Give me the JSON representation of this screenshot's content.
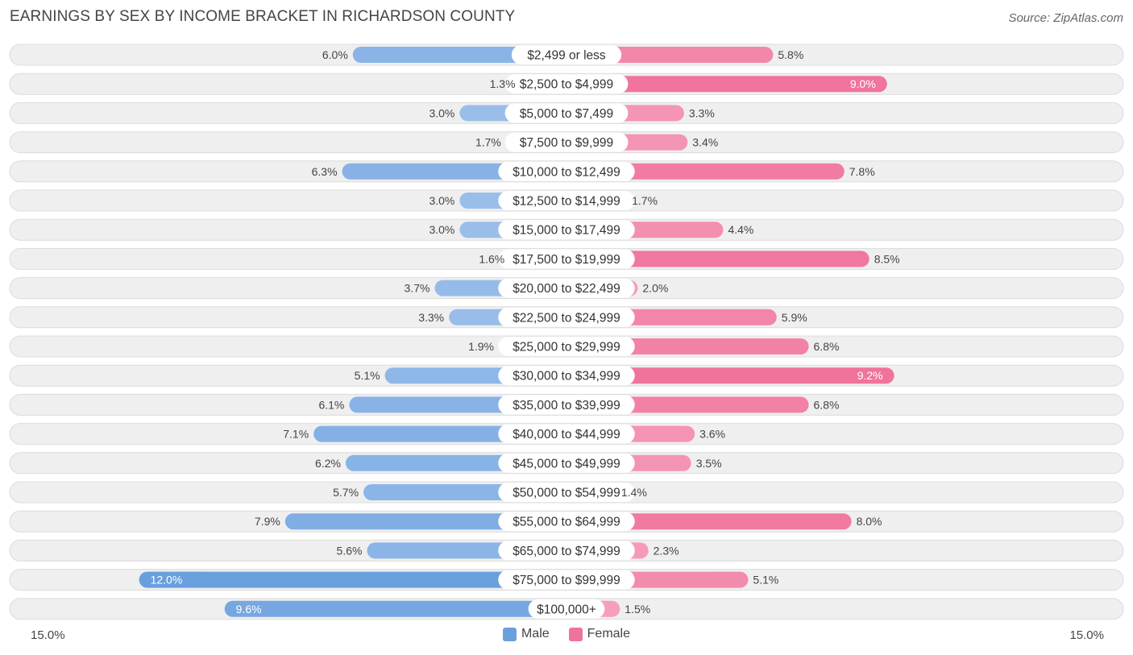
{
  "title": "EARNINGS BY SEX BY INCOME BRACKET IN RICHARDSON COUNTY",
  "source": "Source: ZipAtlas.com",
  "axis": {
    "left_label": "15.0%",
    "right_label": "15.0%"
  },
  "legend": [
    {
      "label": "Male",
      "color": "#6a9fde"
    },
    {
      "label": "Female",
      "color": "#f0739c"
    }
  ],
  "colors": {
    "male_dark": "#6a9fde",
    "male_light": "#a9c8ee",
    "female_dark": "#f0739c",
    "female_light": "#f6a8c1",
    "row_bg": "#efefef",
    "row_border": "#dcdcdc"
  },
  "chart_data": {
    "type": "bar",
    "orientation": "horizontal-diverging",
    "title": "EARNINGS BY SEX BY INCOME BRACKET IN RICHARDSON COUNTY",
    "xlim": [
      -15,
      15
    ],
    "categories": [
      "$2,499 or less",
      "$2,500 to $4,999",
      "$5,000 to $7,499",
      "$7,500 to $9,999",
      "$10,000 to $12,499",
      "$12,500 to $14,999",
      "$15,000 to $17,499",
      "$17,500 to $19,999",
      "$20,000 to $22,499",
      "$22,500 to $24,999",
      "$25,000 to $29,999",
      "$30,000 to $34,999",
      "$35,000 to $39,999",
      "$40,000 to $44,999",
      "$45,000 to $49,999",
      "$50,000 to $54,999",
      "$55,000 to $64,999",
      "$65,000 to $74,999",
      "$75,000 to $99,999",
      "$100,000+"
    ],
    "series": [
      {
        "name": "Male",
        "values": [
          6.0,
          1.3,
          3.0,
          1.7,
          6.3,
          3.0,
          3.0,
          1.6,
          3.7,
          3.3,
          1.9,
          5.1,
          6.1,
          7.1,
          6.2,
          5.7,
          7.9,
          5.6,
          12.0,
          9.6
        ],
        "labels": [
          "6.0%",
          "1.3%",
          "3.0%",
          "1.7%",
          "6.3%",
          "3.0%",
          "3.0%",
          "1.6%",
          "3.7%",
          "3.3%",
          "1.9%",
          "5.1%",
          "6.1%",
          "7.1%",
          "6.2%",
          "5.7%",
          "7.9%",
          "5.6%",
          "12.0%",
          "9.6%"
        ]
      },
      {
        "name": "Female",
        "values": [
          5.8,
          9.0,
          3.3,
          3.4,
          7.8,
          1.7,
          4.4,
          8.5,
          2.0,
          5.9,
          6.8,
          9.2,
          6.8,
          3.6,
          3.5,
          1.4,
          8.0,
          2.3,
          5.1,
          1.5
        ],
        "labels": [
          "5.8%",
          "9.0%",
          "3.3%",
          "3.4%",
          "7.8%",
          "1.7%",
          "4.4%",
          "8.5%",
          "2.0%",
          "5.9%",
          "6.8%",
          "9.2%",
          "6.8%",
          "3.6%",
          "3.5%",
          "1.4%",
          "8.0%",
          "2.3%",
          "5.1%",
          "1.5%"
        ]
      }
    ]
  }
}
